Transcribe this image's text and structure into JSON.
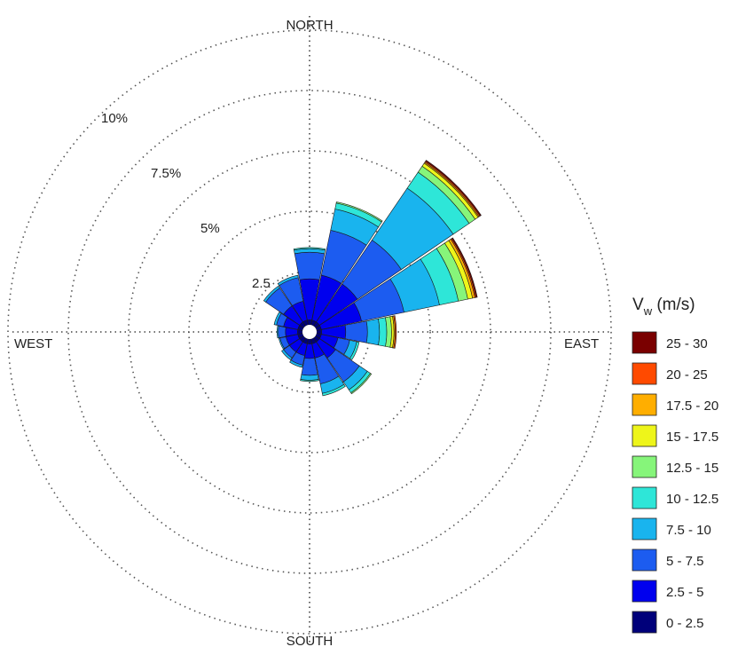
{
  "chart_data": {
    "type": "polar-bar",
    "subtype": "wind-rose",
    "directions": [
      "N",
      "NNE",
      "NE",
      "ENE",
      "E",
      "ESE",
      "SE",
      "SSE",
      "S",
      "SSW",
      "SW",
      "WSW",
      "W",
      "WNW",
      "NW",
      "NNW"
    ],
    "direction_labels": {
      "north": "NORTH",
      "east": "EAST",
      "south": "SOUTH",
      "west": "WEST"
    },
    "radial_ticks": [
      "2.5",
      "5%",
      "7.5%",
      "10%"
    ],
    "radial_tick_values": [
      2.5,
      5,
      7.5,
      10
    ],
    "radial_max": 12.5,
    "legend_title": "V",
    "legend_subscript": "w",
    "legend_unit": " (m/s)",
    "legend_placement": "right",
    "grid": true,
    "series": [
      {
        "name": "0 - 2.5",
        "color": "#00007a"
      },
      {
        "name": "2.5 - 5",
        "color": "#0000ee"
      },
      {
        "name": "5 - 7.5",
        "color": "#1c5cf0"
      },
      {
        "name": "7.5 - 10",
        "color": "#19b4ee"
      },
      {
        "name": "10 - 12.5",
        "color": "#2ee6d8"
      },
      {
        "name": "12.5 - 15",
        "color": "#86f57a"
      },
      {
        "name": "15 - 17.5",
        "color": "#eef51a"
      },
      {
        "name": "17.5 - 20",
        "color": "#ffae00"
      },
      {
        "name": "20 - 25",
        "color": "#ff4a00"
      },
      {
        "name": "25 - 30",
        "color": "#7a0000"
      }
    ],
    "sectors": [
      {
        "direction": "N",
        "cumulative": [
          0.5,
          2.2,
          3.3,
          3.45,
          3.5,
          3.5,
          3.5,
          3.5,
          3.5,
          3.5
        ]
      },
      {
        "direction": "NNE",
        "cumulative": [
          0.5,
          2.4,
          4.3,
          5.2,
          5.45,
          5.5,
          5.5,
          5.5,
          5.5,
          5.5
        ]
      },
      {
        "direction": "NE",
        "cumulative": [
          0.5,
          2.4,
          4.6,
          7.2,
          8.0,
          8.3,
          8.45,
          8.5,
          8.55,
          8.6
        ]
      },
      {
        "direction": "ENE",
        "cumulative": [
          0.5,
          2.2,
          4.0,
          5.5,
          6.3,
          6.7,
          6.9,
          7.0,
          7.05,
          7.1
        ]
      },
      {
        "direction": "E",
        "cumulative": [
          0.5,
          1.5,
          2.4,
          2.9,
          3.2,
          3.4,
          3.5,
          3.55,
          3.6,
          3.6
        ]
      },
      {
        "direction": "ESE",
        "cumulative": [
          0.5,
          1.2,
          1.7,
          2.0,
          2.1,
          2.1,
          2.1,
          2.1,
          2.1,
          2.1
        ]
      },
      {
        "direction": "SE",
        "cumulative": [
          0.5,
          1.3,
          2.5,
          2.9,
          3.05,
          3.1,
          3.1,
          3.1,
          3.1,
          3.1
        ]
      },
      {
        "direction": "SSE",
        "cumulative": [
          0.5,
          1.1,
          2.2,
          2.6,
          2.7,
          2.7,
          2.7,
          2.7,
          2.7,
          2.7
        ]
      },
      {
        "direction": "S",
        "cumulative": [
          0.5,
          1.1,
          1.8,
          2.0,
          2.05,
          2.05,
          2.05,
          2.05,
          2.05,
          2.05
        ]
      },
      {
        "direction": "SSW",
        "cumulative": [
          0.5,
          1.0,
          1.4,
          1.5,
          1.5,
          1.5,
          1.5,
          1.5,
          1.5,
          1.5
        ]
      },
      {
        "direction": "SW",
        "cumulative": [
          0.5,
          1.0,
          1.3,
          1.4,
          1.4,
          1.4,
          1.4,
          1.4,
          1.4,
          1.4
        ]
      },
      {
        "direction": "WSW",
        "cumulative": [
          0.5,
          1.0,
          1.25,
          1.3,
          1.3,
          1.3,
          1.3,
          1.3,
          1.3,
          1.3
        ]
      },
      {
        "direction": "W",
        "cumulative": [
          0.5,
          1.0,
          1.3,
          1.35,
          1.35,
          1.35,
          1.35,
          1.35,
          1.35,
          1.35
        ]
      },
      {
        "direction": "WNW",
        "cumulative": [
          0.5,
          1.1,
          1.4,
          1.5,
          1.5,
          1.5,
          1.5,
          1.5,
          1.5,
          1.5
        ]
      },
      {
        "direction": "NW",
        "cumulative": [
          0.5,
          1.3,
          2.2,
          2.3,
          2.3,
          2.3,
          2.3,
          2.3,
          2.3,
          2.3
        ]
      },
      {
        "direction": "NNW",
        "cumulative": [
          0.5,
          1.3,
          2.3,
          2.4,
          2.4,
          2.4,
          2.4,
          2.4,
          2.4,
          2.4
        ]
      }
    ]
  }
}
